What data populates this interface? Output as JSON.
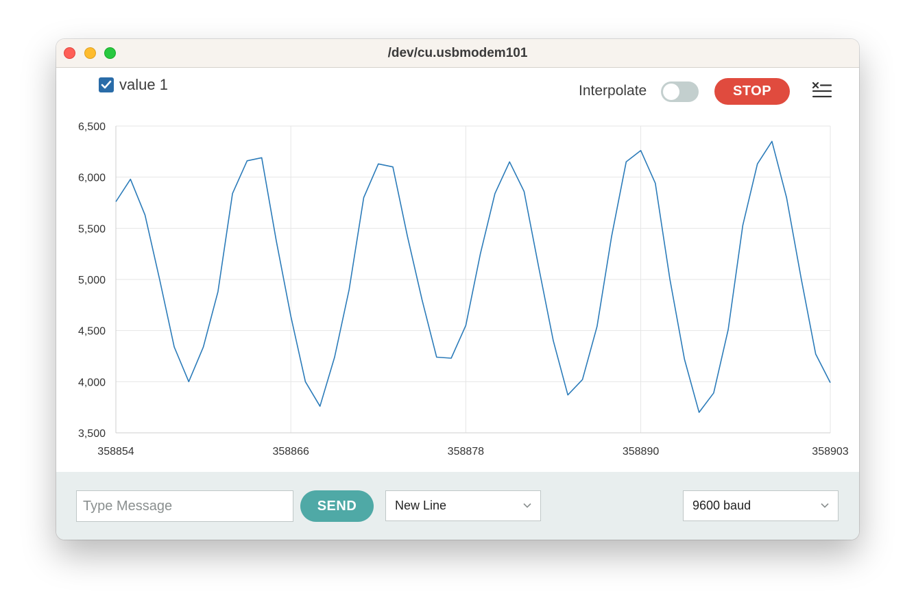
{
  "window": {
    "title": "/dev/cu.usbmodem101"
  },
  "legend": {
    "series_label": "value 1",
    "checked": true
  },
  "toolbar": {
    "interpolate_label": "Interpolate",
    "interpolate_on": false,
    "stop_label": "STOP",
    "clear_icon": "clear-list-icon"
  },
  "footer": {
    "message_placeholder": "Type Message",
    "send_label": "SEND",
    "line_ending": "New Line",
    "baud_rate": "9600 baud"
  },
  "colors": {
    "line": "#2b7bb9",
    "stop": "#e04b3e",
    "send": "#4fa9a6",
    "checkbox": "#2a6ca8"
  },
  "chart_data": {
    "type": "line",
    "title": "",
    "xlabel": "",
    "ylabel": "",
    "xlim": [
      358854,
      358903
    ],
    "ylim": [
      3500,
      6500
    ],
    "xticks": [
      358854,
      358866,
      358878,
      358890,
      358903
    ],
    "xtick_labels": [
      "358854",
      "358866",
      "358878",
      "358890",
      "358903"
    ],
    "yticks": [
      3500,
      4000,
      4500,
      5000,
      5500,
      6000,
      6500
    ],
    "ytick_labels": [
      "3,500",
      "4,000",
      "4,500",
      "5,000",
      "5,500",
      "6,000",
      "6,500"
    ],
    "grid": true,
    "series": [
      {
        "name": "value 1",
        "x": [
          358854,
          358855,
          358856,
          358857,
          358858,
          358859,
          358860,
          358861,
          358862,
          358863,
          358864,
          358865,
          358866,
          358867,
          358868,
          358869,
          358870,
          358871,
          358872,
          358873,
          358874,
          358875,
          358876,
          358877,
          358878,
          358879,
          358880,
          358881,
          358882,
          358883,
          358884,
          358885,
          358886,
          358887,
          358888,
          358889,
          358890,
          358891,
          358892,
          358893,
          358894,
          358895,
          358896,
          358897,
          358898,
          358899,
          358900,
          358901,
          358902,
          358903
        ],
        "values": [
          5760,
          5980,
          5630,
          5000,
          4340,
          4000,
          4340,
          4880,
          5840,
          6160,
          6190,
          5380,
          4640,
          4000,
          3760,
          4240,
          4900,
          5800,
          6130,
          6100,
          5420,
          4800,
          4240,
          4230,
          4550,
          5250,
          5840,
          6150,
          5860,
          5120,
          4400,
          3870,
          4020,
          4540,
          5420,
          6150,
          6260,
          5940,
          5000,
          4220,
          3700,
          3890,
          4510,
          5530,
          6130,
          6350,
          5800,
          5010,
          4270,
          3990
        ]
      }
    ]
  }
}
